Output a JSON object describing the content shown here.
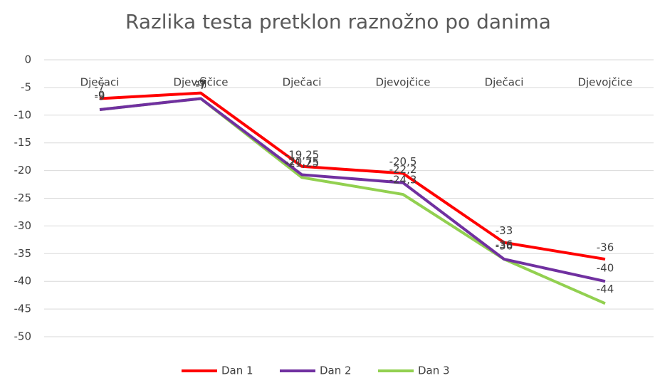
{
  "chart_data": {
    "type": "line",
    "title": "Razlika testa pretklon raznožno po danima",
    "categories": [
      "Dječaci",
      "Djevojčice",
      "Dječaci",
      "Djevojčice",
      "Dječaci",
      "Djevojčice"
    ],
    "series": [
      {
        "name": "Dan 1",
        "color": "#ff0000",
        "values": [
          -7,
          -6,
          -19.25,
          -20.5,
          -33,
          -36
        ],
        "value_labels": [
          "-7",
          "-6",
          "-19,25",
          "-20,5",
          "-33",
          "-36"
        ]
      },
      {
        "name": "Dan 2",
        "color": "#7030a0",
        "values": [
          -9,
          -7,
          -20.75,
          -22.2,
          -36,
          -40
        ],
        "value_labels": [
          "-9",
          "-7",
          "-20,75",
          "-22,2",
          "-36",
          "-40"
        ]
      },
      {
        "name": "Dan 3",
        "color": "#92d050",
        "values": [
          -9,
          -7,
          -21.25,
          -24.3,
          -36,
          -44
        ],
        "value_labels": [
          "-9",
          "-7",
          "-21,25",
          "-24,3",
          "-36",
          "-44"
        ]
      }
    ],
    "ylim": [
      -50,
      0
    ],
    "yticks": [
      0,
      -5,
      -10,
      -15,
      -20,
      -25,
      -30,
      -35,
      -40,
      -45,
      -50
    ],
    "grid": true,
    "legend": "bottom"
  }
}
